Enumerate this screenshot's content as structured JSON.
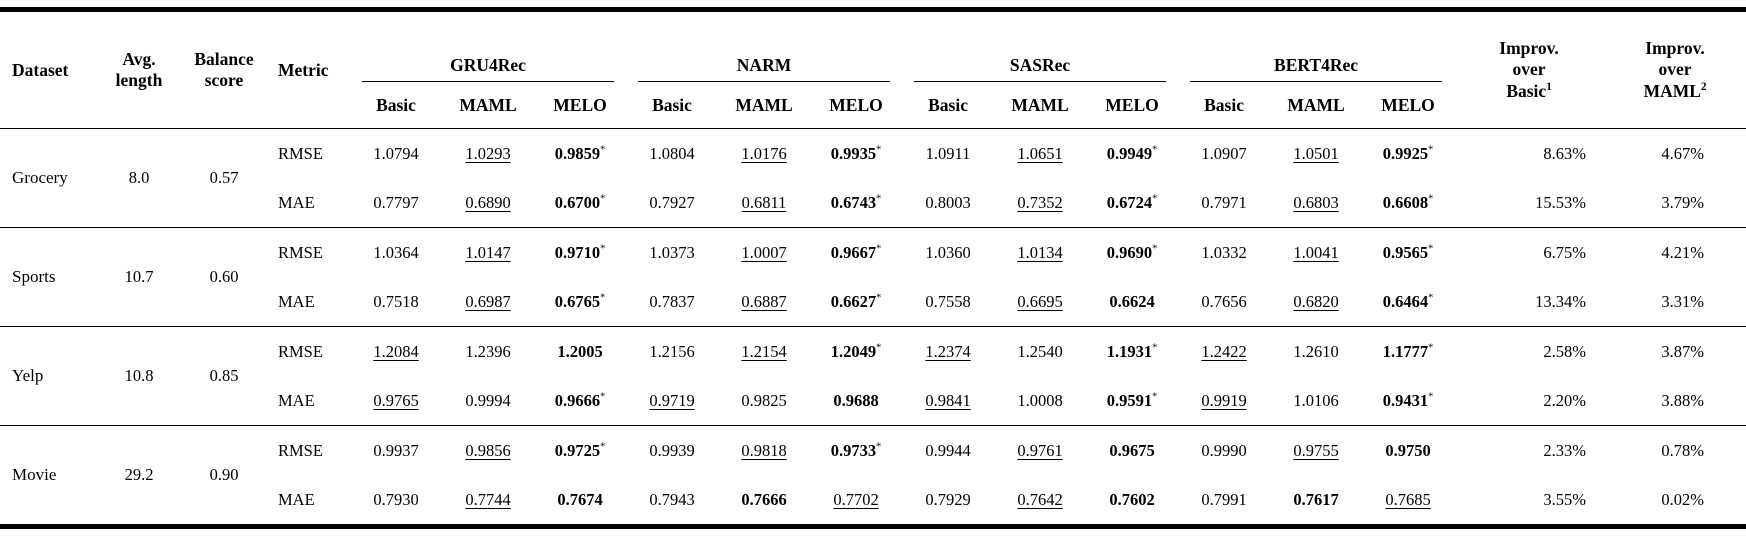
{
  "meta": {
    "star": "*"
  },
  "table": {
    "columns": {
      "dataset": "Dataset",
      "avg_length": "Avg. length",
      "balance_score": "Balance score",
      "metric": "Metric"
    },
    "model_groups": [
      "GRU4Rec",
      "NARM",
      "SASRec",
      "BERT4Rec"
    ],
    "variant_cols": [
      "Basic",
      "MAML",
      "MELO"
    ],
    "improv_headers": [
      {
        "line1": "Improv.",
        "line2": "over",
        "base": "Basic",
        "sup": "1"
      },
      {
        "line1": "Improv.",
        "line2": "over",
        "base": "MAML",
        "sup": "2"
      }
    ],
    "rows": [
      {
        "dataset": "Grocery",
        "avg_length": "8.0",
        "balance_score": "0.57",
        "metrics": [
          {
            "name": "RMSE",
            "models": [
              [
                {
                  "v": "1.0794"
                },
                {
                  "v": "1.0293",
                  "u": true
                },
                {
                  "v": "0.9859",
                  "b": true,
                  "s": true
                }
              ],
              [
                {
                  "v": "1.0804"
                },
                {
                  "v": "1.0176",
                  "u": true
                },
                {
                  "v": "0.9935",
                  "b": true,
                  "s": true
                }
              ],
              [
                {
                  "v": "1.0911"
                },
                {
                  "v": "1.0651",
                  "u": true
                },
                {
                  "v": "0.9949",
                  "b": true,
                  "s": true
                }
              ],
              [
                {
                  "v": "1.0907"
                },
                {
                  "v": "1.0501",
                  "u": true
                },
                {
                  "v": "0.9925",
                  "b": true,
                  "s": true
                }
              ]
            ],
            "improv_basic": "8.63%",
            "improv_maml": "4.67%"
          },
          {
            "name": "MAE",
            "models": [
              [
                {
                  "v": "0.7797"
                },
                {
                  "v": "0.6890",
                  "u": true
                },
                {
                  "v": "0.6700",
                  "b": true,
                  "s": true
                }
              ],
              [
                {
                  "v": "0.7927"
                },
                {
                  "v": "0.6811",
                  "u": true
                },
                {
                  "v": "0.6743",
                  "b": true,
                  "s": true
                }
              ],
              [
                {
                  "v": "0.8003"
                },
                {
                  "v": "0.7352",
                  "u": true
                },
                {
                  "v": "0.6724",
                  "b": true,
                  "s": true
                }
              ],
              [
                {
                  "v": "0.7971"
                },
                {
                  "v": "0.6803",
                  "u": true
                },
                {
                  "v": "0.6608",
                  "b": true,
                  "s": true
                }
              ]
            ],
            "improv_basic": "15.53%",
            "improv_maml": "3.79%"
          }
        ]
      },
      {
        "dataset": "Sports",
        "avg_length": "10.7",
        "balance_score": "0.60",
        "metrics": [
          {
            "name": "RMSE",
            "models": [
              [
                {
                  "v": "1.0364"
                },
                {
                  "v": "1.0147",
                  "u": true
                },
                {
                  "v": "0.9710",
                  "b": true,
                  "s": true
                }
              ],
              [
                {
                  "v": "1.0373"
                },
                {
                  "v": "1.0007",
                  "u": true
                },
                {
                  "v": "0.9667",
                  "b": true,
                  "s": true
                }
              ],
              [
                {
                  "v": "1.0360"
                },
                {
                  "v": "1.0134",
                  "u": true
                },
                {
                  "v": "0.9690",
                  "b": true,
                  "s": true
                }
              ],
              [
                {
                  "v": "1.0332"
                },
                {
                  "v": "1.0041",
                  "u": true
                },
                {
                  "v": "0.9565",
                  "b": true,
                  "s": true
                }
              ]
            ],
            "improv_basic": "6.75%",
            "improv_maml": "4.21%"
          },
          {
            "name": "MAE",
            "models": [
              [
                {
                  "v": "0.7518"
                },
                {
                  "v": "0.6987",
                  "u": true
                },
                {
                  "v": "0.6765",
                  "b": true,
                  "s": true
                }
              ],
              [
                {
                  "v": "0.7837"
                },
                {
                  "v": "0.6887",
                  "u": true
                },
                {
                  "v": "0.6627",
                  "b": true,
                  "s": true
                }
              ],
              [
                {
                  "v": "0.7558"
                },
                {
                  "v": "0.6695",
                  "u": true
                },
                {
                  "v": "0.6624",
                  "b": true
                }
              ],
              [
                {
                  "v": "0.7656"
                },
                {
                  "v": "0.6820",
                  "u": true
                },
                {
                  "v": "0.6464",
                  "b": true,
                  "s": true
                }
              ]
            ],
            "improv_basic": "13.34%",
            "improv_maml": "3.31%"
          }
        ]
      },
      {
        "dataset": "Yelp",
        "avg_length": "10.8",
        "balance_score": "0.85",
        "metrics": [
          {
            "name": "RMSE",
            "models": [
              [
                {
                  "v": "1.2084",
                  "u": true
                },
                {
                  "v": "1.2396"
                },
                {
                  "v": "1.2005",
                  "b": true
                }
              ],
              [
                {
                  "v": "1.2156"
                },
                {
                  "v": "1.2154",
                  "u": true
                },
                {
                  "v": "1.2049",
                  "b": true,
                  "s": true
                }
              ],
              [
                {
                  "v": "1.2374",
                  "u": true
                },
                {
                  "v": "1.2540"
                },
                {
                  "v": "1.1931",
                  "b": true,
                  "s": true
                }
              ],
              [
                {
                  "v": "1.2422",
                  "u": true
                },
                {
                  "v": "1.2610"
                },
                {
                  "v": "1.1777",
                  "b": true,
                  "s": true
                }
              ]
            ],
            "improv_basic": "2.58%",
            "improv_maml": "3.87%"
          },
          {
            "name": "MAE",
            "models": [
              [
                {
                  "v": "0.9765",
                  "u": true
                },
                {
                  "v": "0.9994"
                },
                {
                  "v": "0.9666",
                  "b": true,
                  "s": true
                }
              ],
              [
                {
                  "v": "0.9719",
                  "u": true
                },
                {
                  "v": "0.9825"
                },
                {
                  "v": "0.9688",
                  "b": true
                }
              ],
              [
                {
                  "v": "0.9841",
                  "u": true
                },
                {
                  "v": "1.0008"
                },
                {
                  "v": "0.9591",
                  "b": true,
                  "s": true
                }
              ],
              [
                {
                  "v": "0.9919",
                  "u": true
                },
                {
                  "v": "1.0106"
                },
                {
                  "v": "0.9431",
                  "b": true,
                  "s": true
                }
              ]
            ],
            "improv_basic": "2.20%",
            "improv_maml": "3.88%"
          }
        ]
      },
      {
        "dataset": "Movie",
        "avg_length": "29.2",
        "balance_score": "0.90",
        "metrics": [
          {
            "name": "RMSE",
            "models": [
              [
                {
                  "v": "0.9937"
                },
                {
                  "v": "0.9856",
                  "u": true
                },
                {
                  "v": "0.9725",
                  "b": true,
                  "s": true
                }
              ],
              [
                {
                  "v": "0.9939"
                },
                {
                  "v": "0.9818",
                  "u": true
                },
                {
                  "v": "0.9733",
                  "b": true,
                  "s": true
                }
              ],
              [
                {
                  "v": "0.9944"
                },
                {
                  "v": "0.9761",
                  "u": true
                },
                {
                  "v": "0.9675",
                  "b": true
                }
              ],
              [
                {
                  "v": "0.9990"
                },
                {
                  "v": "0.9755",
                  "u": true
                },
                {
                  "v": "0.9750",
                  "b": true
                }
              ]
            ],
            "improv_basic": "2.33%",
            "improv_maml": "0.78%"
          },
          {
            "name": "MAE",
            "models": [
              [
                {
                  "v": "0.7930"
                },
                {
                  "v": "0.7744",
                  "u": true
                },
                {
                  "v": "0.7674",
                  "b": true
                }
              ],
              [
                {
                  "v": "0.7943"
                },
                {
                  "v": "0.7666",
                  "b": true
                },
                {
                  "v": "0.7702",
                  "u": true
                }
              ],
              [
                {
                  "v": "0.7929"
                },
                {
                  "v": "0.7642",
                  "u": true
                },
                {
                  "v": "0.7602",
                  "b": true
                }
              ],
              [
                {
                  "v": "0.7991"
                },
                {
                  "v": "0.7617",
                  "b": true
                },
                {
                  "v": "0.7685",
                  "u": true
                }
              ]
            ],
            "improv_basic": "3.55%",
            "improv_maml": "0.02%"
          }
        ]
      }
    ]
  }
}
